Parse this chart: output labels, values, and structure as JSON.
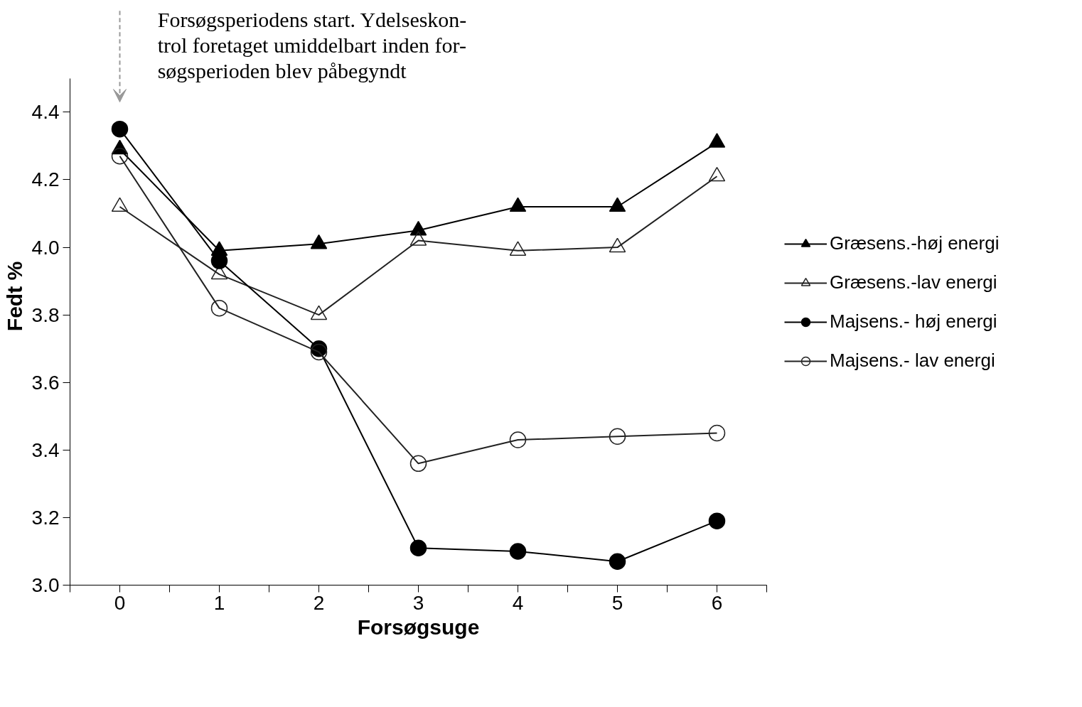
{
  "chart_data": {
    "type": "line",
    "xlabel": "Forsøgsuge",
    "ylabel": "Fedt %",
    "x": [
      0,
      1,
      2,
      3,
      4,
      5,
      6
    ],
    "series": [
      {
        "name": "Græsens.-høj energi",
        "color": "#000000",
        "marker": "triangle",
        "values": [
          4.29,
          3.99,
          4.01,
          4.05,
          4.12,
          4.12,
          4.31
        ]
      },
      {
        "name": "Græsens.-lav energi",
        "color": "#222222",
        "marker": "triangle",
        "values": [
          4.12,
          3.92,
          3.8,
          4.02,
          3.99,
          4.0,
          4.21
        ]
      },
      {
        "name": "Majsens.- høj energi",
        "color": "#000000",
        "marker": "circle",
        "values": [
          4.35,
          3.96,
          3.7,
          3.11,
          3.1,
          3.07,
          3.19
        ]
      },
      {
        "name": "Majsens.- lav energi",
        "color": "#222222",
        "marker": "circle",
        "values": [
          4.27,
          3.82,
          3.69,
          3.36,
          3.43,
          3.44,
          3.45
        ]
      }
    ],
    "xlim": [
      -0.5,
      6.5
    ],
    "ylim": [
      3.0,
      4.5
    ],
    "xticks": [
      {
        "value": -0.5,
        "label": null
      },
      0,
      {
        "value": 0.5,
        "label": null
      },
      1,
      {
        "value": 1.5,
        "label": null
      },
      2,
      {
        "value": 2.5,
        "label": null
      },
      3,
      {
        "value": 3.5,
        "label": null
      },
      4,
      {
        "value": 4.5,
        "label": null
      },
      5,
      {
        "value": 5.5,
        "label": null
      },
      6,
      {
        "value": 6.5,
        "label": null
      }
    ],
    "yticks": [
      {
        "value": 3.0,
        "label": "3.0"
      },
      3.2,
      3.4,
      3.6,
      3.8,
      {
        "value": 4.0,
        "label": "4.0"
      },
      4.2,
      4.4
    ],
    "annotations": [
      "Forsøgsperiodens start. Ydelseskon-\ntrol foretaget umiddelbart inden for-\nsøgsperioden blev påbegyndt"
    ],
    "grid": false,
    "legend": "right",
    "line_style": "solid"
  }
}
